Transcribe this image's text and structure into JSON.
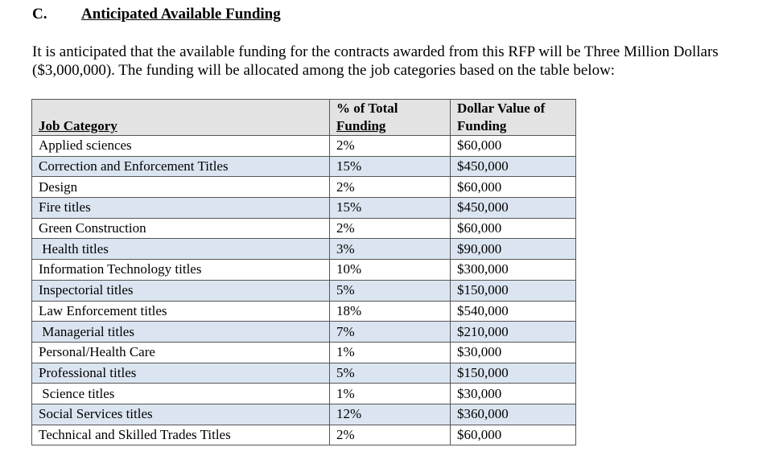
{
  "section": {
    "letter": "C.",
    "title": "Anticipated Available Funding"
  },
  "intro": "It is anticipated that the available funding for the contracts awarded from this RFP will be Three Million Dollars ($3,000,000). The funding will be allocated among the job categories based on the table below:",
  "table": {
    "headers": {
      "job_category": "Job Category",
      "pct_line1": "% of Total",
      "pct_line2": "Funding",
      "dollar_line1": "Dollar Value of",
      "dollar_line2": "Funding"
    },
    "rows": [
      {
        "category": "Applied sciences",
        "percent": "2%",
        "dollars": "$60,000"
      },
      {
        "category": "Correction and Enforcement Titles",
        "percent": "15%",
        "dollars": "$450,000"
      },
      {
        "category": "Design",
        "percent": "2%",
        "dollars": "$60,000"
      },
      {
        "category": "Fire titles",
        "percent": "15%",
        "dollars": "$450,000"
      },
      {
        "category": "Green Construction",
        "percent": "2%",
        "dollars": "$60,000"
      },
      {
        "category": " Health titles",
        "percent": "3%",
        "dollars": "$90,000"
      },
      {
        "category": "Information Technology titles",
        "percent": "10%",
        "dollars": "$300,000"
      },
      {
        "category": "Inspectorial titles",
        "percent": "5%",
        "dollars": "$150,000"
      },
      {
        "category": "Law Enforcement titles",
        "percent": "18%",
        "dollars": "$540,000"
      },
      {
        "category": " Managerial titles",
        "percent": "7%",
        "dollars": "$210,000"
      },
      {
        "category": "Personal/Health Care",
        "percent": "1%",
        "dollars": "$30,000"
      },
      {
        "category": "Professional titles",
        "percent": "5%",
        "dollars": "$150,000"
      },
      {
        "category": " Science titles",
        "percent": "1%",
        "dollars": "$30,000"
      },
      {
        "category": "Social Services titles",
        "percent": "12%",
        "dollars": "$360,000"
      },
      {
        "category": "Technical and Skilled Trades Titles",
        "percent": "2%",
        "dollars": "$60,000"
      }
    ],
    "shaded_row_color": "#dbe5f1",
    "header_color": "#e3e3e3"
  }
}
